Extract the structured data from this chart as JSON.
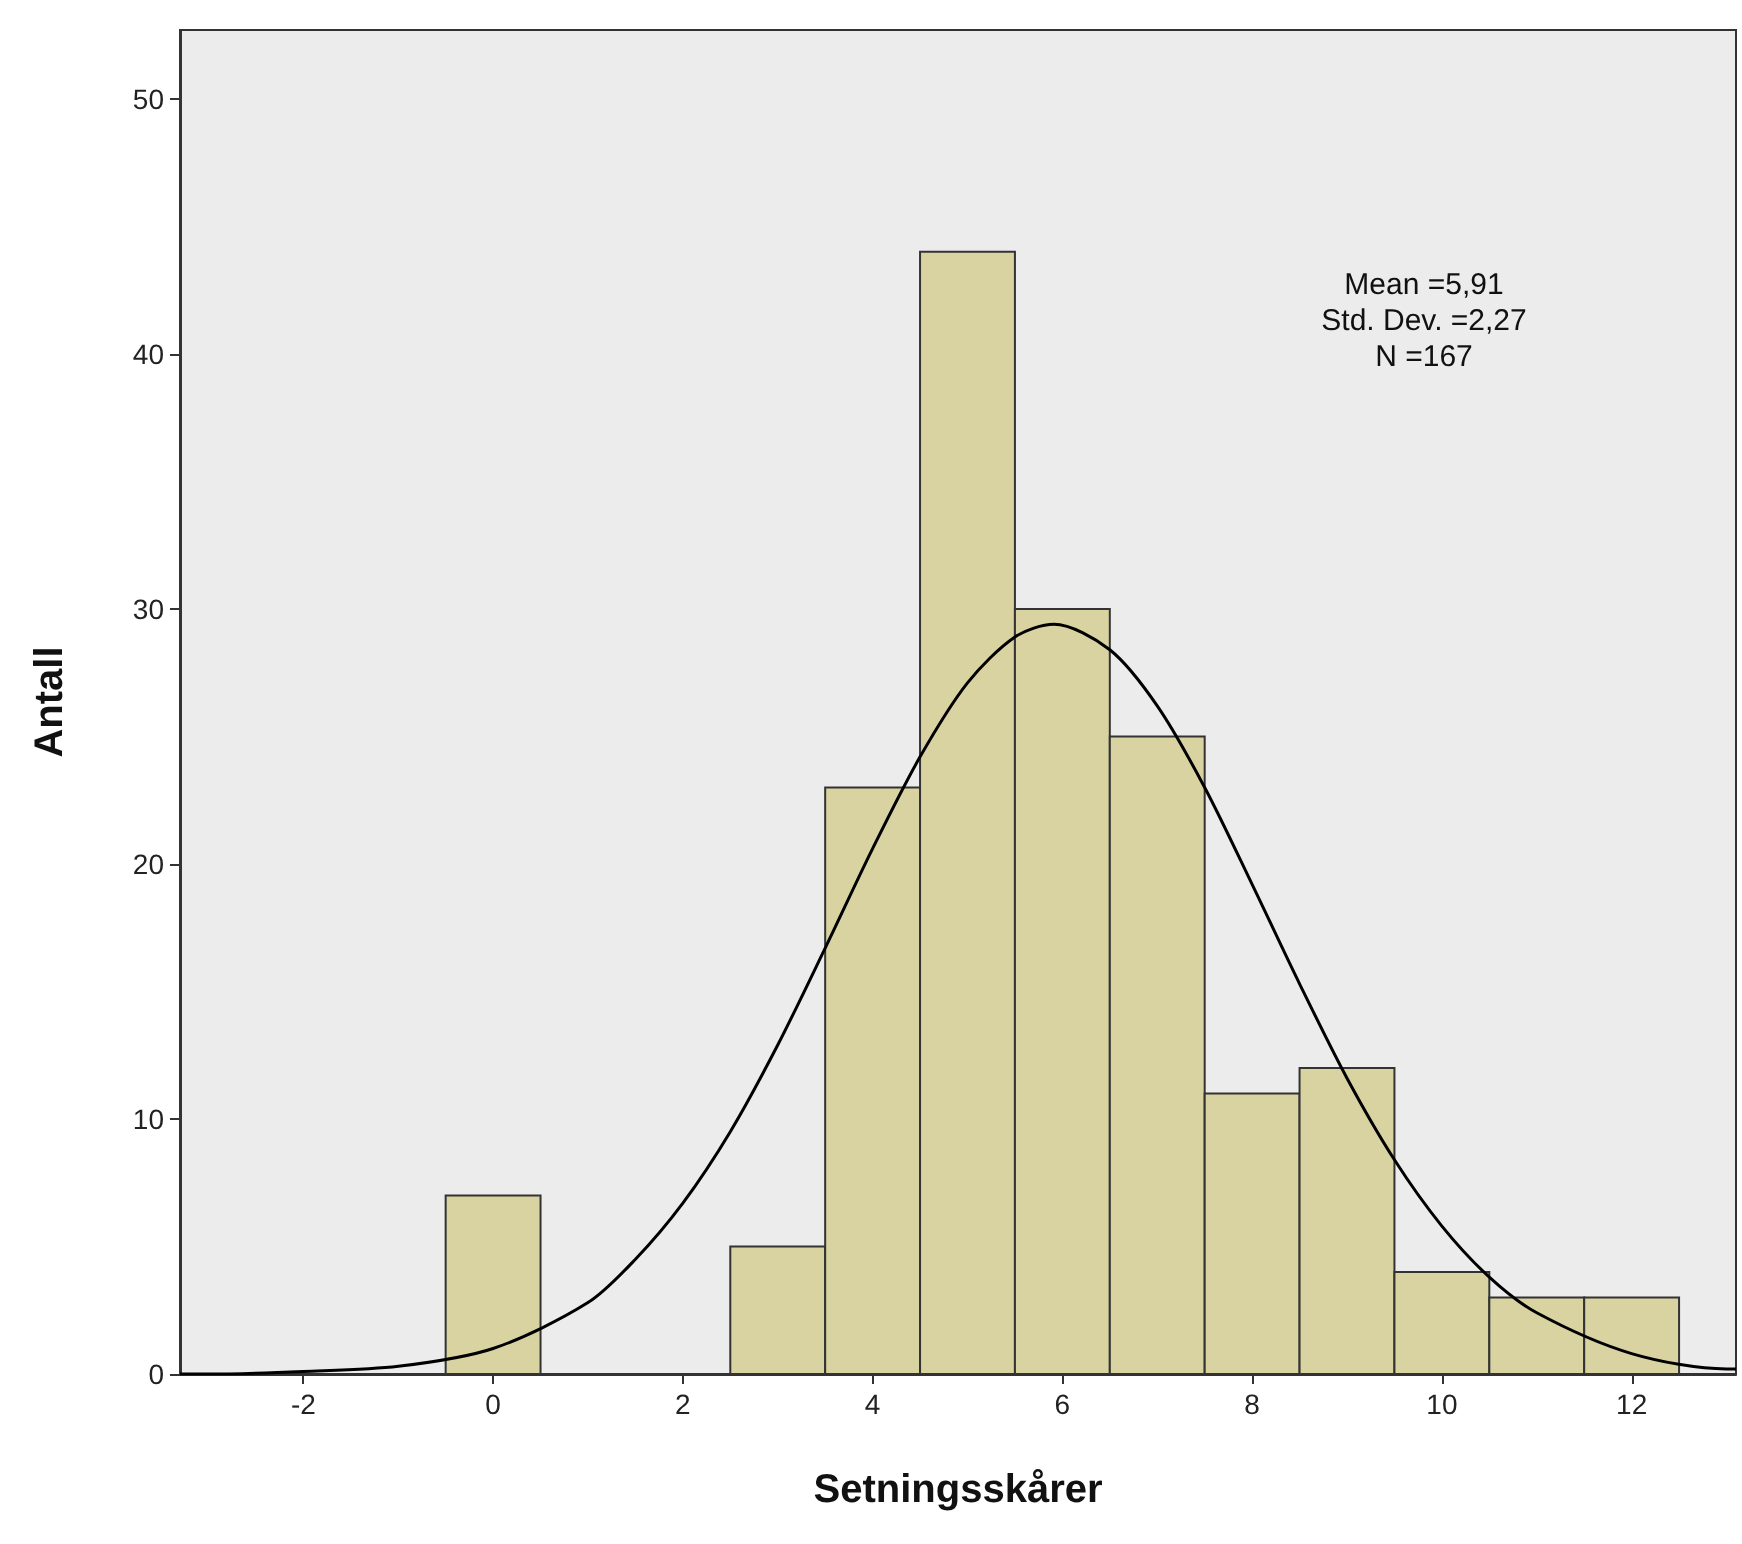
{
  "chart_data": {
    "type": "histogram",
    "xlabel": "Setningsskårer",
    "ylabel": "Antall",
    "bins": [
      -0.5,
      0.5,
      1.5,
      2.5,
      3.5,
      4.5,
      5.5,
      6.5,
      7.5,
      8.5,
      9.5,
      10.5,
      11.5,
      12.5
    ],
    "values": [
      7,
      0,
      0,
      5,
      23,
      44,
      30,
      25,
      11,
      12,
      4,
      3,
      3
    ],
    "color": "#d8d3a0",
    "series": [
      {
        "type": "line",
        "color": "#000000",
        "marker": "none",
        "x": [
          -3.3,
          -3,
          -2,
          -1,
          0,
          1,
          1.5,
          2,
          2.5,
          3,
          3.5,
          4,
          4.5,
          5,
          5.5,
          5.91,
          6.5,
          7,
          7.5,
          8,
          8.5,
          9,
          9.5,
          10,
          10.5,
          11,
          12,
          13,
          13.1
        ],
        "values": [
          0,
          0,
          0.1,
          0.3,
          1,
          2.8,
          4.5,
          6.7,
          9.5,
          12.9,
          16.7,
          20.6,
          24.2,
          27.1,
          28.9,
          29.4,
          28.4,
          26.2,
          23,
          19.2,
          15.3,
          11.6,
          8.4,
          5.8,
          3.8,
          2.4,
          0.8,
          0.2,
          0.2
        ]
      }
    ],
    "xlim": [
      -3.3,
      13.1
    ],
    "xticks": [
      -2,
      0,
      2,
      4,
      6,
      8,
      10,
      12
    ],
    "ylim": [
      0,
      52.7
    ],
    "yticks": [
      0,
      10,
      20,
      30,
      40,
      50
    ],
    "grid": false,
    "annotations": [
      "Mean =5,91",
      "Std. Dev. =2,27",
      "N =167"
    ]
  }
}
